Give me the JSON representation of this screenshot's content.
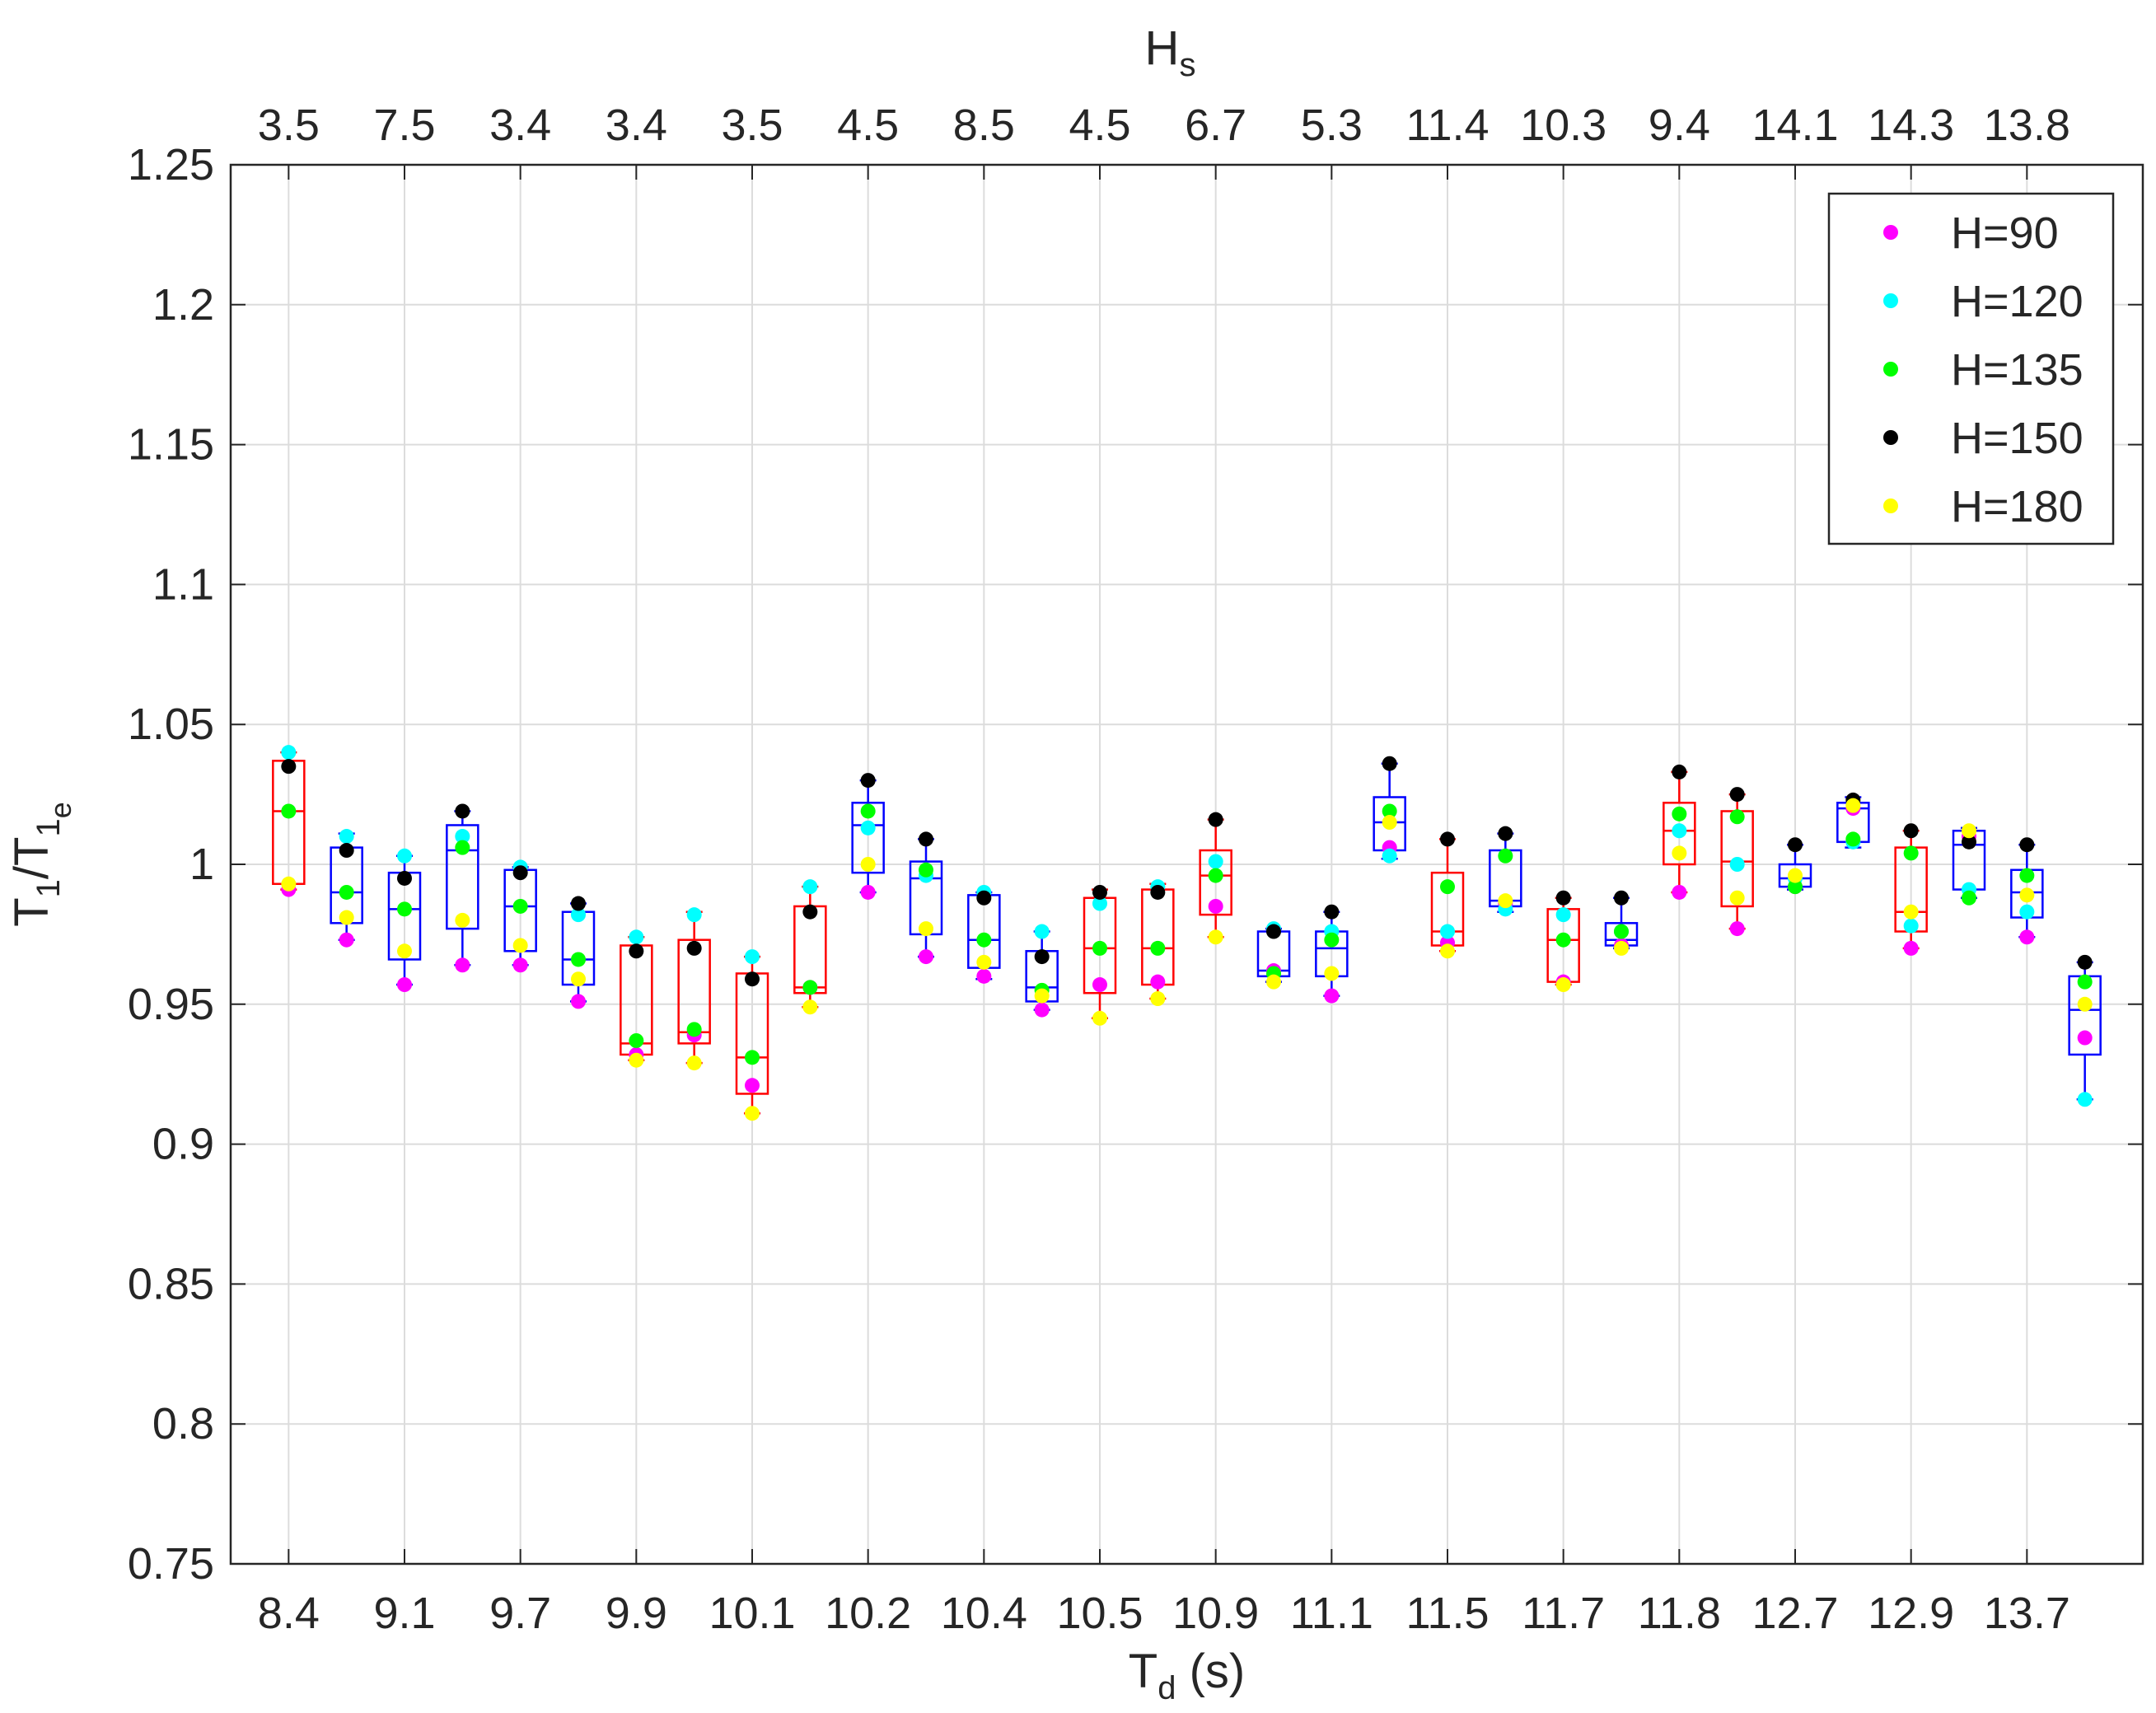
{
  "chart_data": {
    "type": "box",
    "top_axis": {
      "label": "H",
      "label_subscript": "s",
      "ticks": [
        "3.5",
        "7.5",
        "3.4",
        "3.4",
        "3.5",
        "4.5",
        "8.5",
        "4.5",
        "6.7",
        "5.3",
        "11.4",
        "10.3",
        "9.4",
        "14.1",
        "14.3",
        "13.8"
      ]
    },
    "bottom_axis": {
      "label": "T",
      "label_subscript": "d",
      "label_suffix": " (s)",
      "ticks": [
        "8.4",
        "9.1",
        "9.7",
        "9.9",
        "10.1",
        "10.2",
        "10.4",
        "10.5",
        "10.9",
        "11.1",
        "11.5",
        "11.7",
        "11.8",
        "12.7",
        "12.9",
        "13.7"
      ]
    },
    "y_axis": {
      "label_parts": [
        "T",
        "1",
        "/T",
        "1",
        "e"
      ],
      "ylim": [
        0.75,
        1.25
      ],
      "ticks": [
        0.75,
        0.8,
        0.85,
        0.9,
        0.95,
        1,
        1.05,
        1.1,
        1.15,
        1.2,
        1.25
      ],
      "tick_labels": [
        "0.75",
        "0.8",
        "0.85",
        "0.9",
        "0.95",
        "1",
        "1.05",
        "1.1",
        "1.15",
        "1.2",
        "1.25"
      ]
    },
    "grid": true,
    "legend": {
      "position": "top-right",
      "entries": [
        {
          "name": "H=90",
          "color": "#ff00ff"
        },
        {
          "name": "H=120",
          "color": "#00ffff"
        },
        {
          "name": "H=135",
          "color": "#00ff00"
        },
        {
          "name": "H=150",
          "color": "#000000"
        },
        {
          "name": "H=180",
          "color": "#ffff00"
        }
      ]
    },
    "colors": {
      "box_red": "#ff0000",
      "box_blue": "#0000ff",
      "grid": "#dcdcdc",
      "axis": "#262626"
    },
    "boxes": [
      {
        "x": 1.0,
        "color": "red",
        "q1": 0.993,
        "median": 1.019,
        "q3": 1.037,
        "whisker_low": 0.991,
        "whisker_high": 1.04,
        "points": [
          0.991,
          1.04,
          1.019,
          1.035,
          0.993
        ]
      },
      {
        "x": 1.5,
        "color": "blue",
        "q1": 0.979,
        "median": 0.99,
        "q3": 1.006,
        "whisker_low": 0.973,
        "whisker_high": 1.011,
        "points": [
          0.973,
          1.01,
          0.99,
          1.005,
          0.981
        ]
      },
      {
        "x": 2.0,
        "color": "blue",
        "q1": 0.966,
        "median": 0.984,
        "q3": 0.997,
        "whisker_low": 0.957,
        "whisker_high": 1.003,
        "points": [
          0.957,
          1.003,
          0.984,
          0.995,
          0.969
        ]
      },
      {
        "x": 2.5,
        "color": "blue",
        "q1": 0.977,
        "median": 1.005,
        "q3": 1.014,
        "whisker_low": 0.964,
        "whisker_high": 1.019,
        "points": [
          0.964,
          1.01,
          1.006,
          1.019,
          0.98
        ]
      },
      {
        "x": 3.0,
        "color": "blue",
        "q1": 0.969,
        "median": 0.985,
        "q3": 0.998,
        "whisker_low": 0.964,
        "whisker_high": 0.999,
        "points": [
          0.964,
          0.999,
          0.985,
          0.997,
          0.971
        ]
      },
      {
        "x": 3.5,
        "color": "blue",
        "q1": 0.957,
        "median": 0.966,
        "q3": 0.983,
        "whisker_low": 0.951,
        "whisker_high": 0.986,
        "points": [
          0.951,
          0.982,
          0.966,
          0.986,
          0.959
        ]
      },
      {
        "x": 4.0,
        "color": "red",
        "q1": 0.932,
        "median": 0.936,
        "q3": 0.971,
        "whisker_low": 0.93,
        "whisker_high": 0.974,
        "points": [
          0.932,
          0.974,
          0.937,
          0.969,
          0.93
        ]
      },
      {
        "x": 4.5,
        "color": "red",
        "q1": 0.936,
        "median": 0.94,
        "q3": 0.973,
        "whisker_low": 0.929,
        "whisker_high": 0.983,
        "points": [
          0.939,
          0.982,
          0.941,
          0.97,
          0.929
        ]
      },
      {
        "x": 5.0,
        "color": "red",
        "q1": 0.918,
        "median": 0.931,
        "q3": 0.961,
        "whisker_low": 0.911,
        "whisker_high": 0.967,
        "points": [
          0.921,
          0.967,
          0.931,
          0.959,
          0.911
        ]
      },
      {
        "x": 5.5,
        "color": "red",
        "q1": 0.954,
        "median": 0.956,
        "q3": 0.985,
        "whisker_low": 0.949,
        "whisker_high": 0.992,
        "points": [
          0.956,
          0.992,
          0.956,
          0.983,
          0.949
        ]
      },
      {
        "x": 6.0,
        "color": "blue",
        "q1": 0.997,
        "median": 1.014,
        "q3": 1.022,
        "whisker_low": 0.99,
        "whisker_high": 1.03,
        "points": [
          0.99,
          1.013,
          1.019,
          1.03,
          1.0
        ]
      },
      {
        "x": 6.5,
        "color": "blue",
        "q1": 0.975,
        "median": 0.995,
        "q3": 1.001,
        "whisker_low": 0.967,
        "whisker_high": 1.009,
        "points": [
          0.967,
          0.996,
          0.998,
          1.009,
          0.977
        ]
      },
      {
        "x": 7.0,
        "color": "blue",
        "q1": 0.963,
        "median": 0.973,
        "q3": 0.989,
        "whisker_low": 0.959,
        "whisker_high": 0.99,
        "points": [
          0.96,
          0.99,
          0.973,
          0.988,
          0.965
        ]
      },
      {
        "x": 7.5,
        "color": "blue",
        "q1": 0.951,
        "median": 0.956,
        "q3": 0.969,
        "whisker_low": 0.948,
        "whisker_high": 0.976,
        "points": [
          0.948,
          0.976,
          0.955,
          0.967,
          0.953
        ]
      },
      {
        "x": 8.0,
        "color": "red",
        "q1": 0.954,
        "median": 0.97,
        "q3": 0.988,
        "whisker_low": 0.945,
        "whisker_high": 0.991,
        "points": [
          0.957,
          0.986,
          0.97,
          0.99,
          0.945
        ]
      },
      {
        "x": 8.5,
        "color": "red",
        "q1": 0.957,
        "median": 0.97,
        "q3": 0.991,
        "whisker_low": 0.952,
        "whisker_high": 0.993,
        "points": [
          0.958,
          0.992,
          0.97,
          0.99,
          0.952
        ]
      },
      {
        "x": 9.0,
        "color": "red",
        "q1": 0.982,
        "median": 0.996,
        "q3": 1.005,
        "whisker_low": 0.974,
        "whisker_high": 1.016,
        "points": [
          0.985,
          1.001,
          0.996,
          1.016,
          0.974
        ]
      },
      {
        "x": 9.5,
        "color": "blue",
        "q1": 0.96,
        "median": 0.962,
        "q3": 0.976,
        "whisker_low": 0.958,
        "whisker_high": 0.977,
        "points": [
          0.962,
          0.977,
          0.961,
          0.976,
          0.958
        ]
      },
      {
        "x": 10.0,
        "color": "blue",
        "q1": 0.96,
        "median": 0.97,
        "q3": 0.976,
        "whisker_low": 0.953,
        "whisker_high": 0.983,
        "points": [
          0.953,
          0.976,
          0.973,
          0.983,
          0.961
        ]
      },
      {
        "x": 10.5,
        "color": "blue",
        "q1": 1.005,
        "median": 1.015,
        "q3": 1.024,
        "whisker_low": 1.002,
        "whisker_high": 1.036,
        "points": [
          1.006,
          1.003,
          1.019,
          1.036,
          1.015
        ]
      },
      {
        "x": 11.0,
        "color": "red",
        "q1": 0.971,
        "median": 0.976,
        "q3": 0.997,
        "whisker_low": 0.969,
        "whisker_high": 1.009,
        "points": [
          0.972,
          0.976,
          0.992,
          1.009,
          0.969
        ]
      },
      {
        "x": 11.5,
        "color": "blue",
        "q1": 0.985,
        "median": 0.987,
        "q3": 1.005,
        "whisker_low": 0.983,
        "whisker_high": 1.011,
        "points": [
          0.986,
          0.984,
          1.003,
          1.011,
          0.987
        ]
      },
      {
        "x": 12.0,
        "color": "red",
        "q1": 0.958,
        "median": 0.973,
        "q3": 0.984,
        "whisker_low": 0.957,
        "whisker_high": 0.988,
        "points": [
          0.958,
          0.982,
          0.973,
          0.988,
          0.957
        ]
      },
      {
        "x": 12.5,
        "color": "blue",
        "q1": 0.971,
        "median": 0.973,
        "q3": 0.979,
        "whisker_low": 0.97,
        "whisker_high": 0.988,
        "points": [
          0.971,
          0.976,
          0.976,
          0.988,
          0.97
        ]
      },
      {
        "x": 13.0,
        "color": "red",
        "q1": 1.0,
        "median": 1.012,
        "q3": 1.022,
        "whisker_low": 0.99,
        "whisker_high": 1.033,
        "points": [
          0.99,
          1.012,
          1.018,
          1.033,
          1.004
        ]
      },
      {
        "x": 13.5,
        "color": "red",
        "q1": 0.985,
        "median": 1.001,
        "q3": 1.019,
        "whisker_low": 0.977,
        "whisker_high": 1.025,
        "points": [
          0.977,
          1.0,
          1.017,
          1.025,
          0.988
        ]
      },
      {
        "x": 14.0,
        "color": "blue",
        "q1": 0.992,
        "median": 0.995,
        "q3": 1.0,
        "whisker_low": 0.991,
        "whisker_high": 1.007,
        "points": [
          0.992,
          0.995,
          0.992,
          1.007,
          0.996
        ]
      },
      {
        "x": 14.5,
        "color": "blue",
        "q1": 1.008,
        "median": 1.02,
        "q3": 1.022,
        "whisker_low": 1.006,
        "whisker_high": 1.024,
        "points": [
          1.02,
          1.008,
          1.009,
          1.023,
          1.021
        ]
      },
      {
        "x": 15.0,
        "color": "red",
        "q1": 0.976,
        "median": 0.983,
        "q3": 1.006,
        "whisker_low": 0.97,
        "whisker_high": 1.012,
        "points": [
          0.97,
          0.978,
          1.004,
          1.012,
          0.983
        ]
      },
      {
        "x": 15.5,
        "color": "blue",
        "q1": 0.991,
        "median": 1.007,
        "q3": 1.012,
        "whisker_low": 0.988,
        "whisker_high": 1.013,
        "points": [
          1.01,
          0.991,
          0.988,
          1.008,
          1.012
        ]
      },
      {
        "x": 16.0,
        "color": "blue",
        "q1": 0.981,
        "median": 0.99,
        "q3": 0.998,
        "whisker_low": 0.974,
        "whisker_high": 1.007,
        "points": [
          0.974,
          0.983,
          0.996,
          1.007,
          0.989
        ]
      },
      {
        "x": 16.5,
        "color": "blue",
        "q1": 0.932,
        "median": 0.948,
        "q3": 0.96,
        "whisker_low": 0.916,
        "whisker_high": 0.965,
        "points": [
          0.938,
          0.916,
          0.958,
          0.965,
          0.95
        ]
      }
    ]
  }
}
